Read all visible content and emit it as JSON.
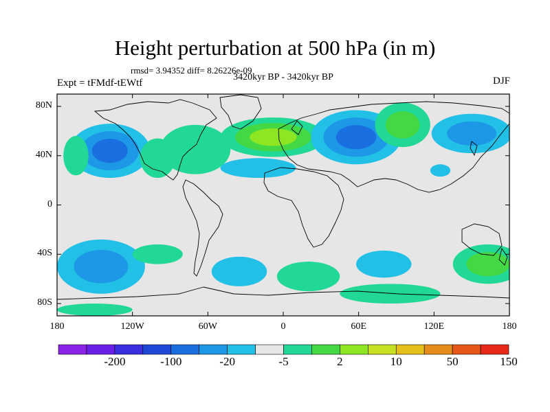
{
  "title": "Height perturbation at 500 hPa (in m)",
  "stats": "rmsd= 3.94352 diff= 8.26226e-09",
  "subtitle": "3420kyr BP - 3420kyr BP",
  "expt": "Expt = tFMdf-tEWtf",
  "season": "DJF",
  "axes": {
    "lat_ticks": [
      {
        "value": 80,
        "label": "80N"
      },
      {
        "value": 40,
        "label": "40N"
      },
      {
        "value": 0,
        "label": "0"
      },
      {
        "value": -40,
        "label": "40S"
      },
      {
        "value": -80,
        "label": "80S"
      }
    ],
    "lon_ticks": [
      {
        "value": -180,
        "label": "180"
      },
      {
        "value": -120,
        "label": "120W"
      },
      {
        "value": -60,
        "label": "60W"
      },
      {
        "value": 0,
        "label": "0"
      },
      {
        "value": 60,
        "label": "60E"
      },
      {
        "value": 120,
        "label": "120E"
      },
      {
        "value": 180,
        "label": "180"
      }
    ],
    "lon_range": [
      -180,
      180
    ],
    "lat_range": [
      -90,
      90
    ]
  },
  "colorbar": {
    "colors": [
      "#8b22e6",
      "#6a1ee8",
      "#3b2ee0",
      "#1f48d6",
      "#1a6fe0",
      "#1d98e6",
      "#22bfe6",
      "#e6e6e6",
      "#22d896",
      "#44d844",
      "#8ee622",
      "#c8e022",
      "#e6c01a",
      "#e68c1a",
      "#e6581a",
      "#e62a1a"
    ],
    "labels": [
      {
        "after_index": 1,
        "text": "-200"
      },
      {
        "after_index": 3,
        "text": "-100"
      },
      {
        "after_index": 5,
        "text": "-20"
      },
      {
        "after_index": 7,
        "text": "-5"
      },
      {
        "after_index": 9,
        "text": "2"
      },
      {
        "after_index": 11,
        "text": "10"
      },
      {
        "after_index": 13,
        "text": "50"
      },
      {
        "after_index": 15,
        "text": "150"
      }
    ]
  },
  "anomalies": [
    {
      "lon": -138,
      "lat": 44,
      "rx": 32,
      "ry": 22,
      "sign": -1,
      "level": 3
    },
    {
      "lon": -100,
      "lat": 38,
      "rx": 14,
      "ry": 16,
      "sign": 1,
      "level": 1
    },
    {
      "lon": -70,
      "lat": 45,
      "rx": 28,
      "ry": 20,
      "sign": 1,
      "level": 1
    },
    {
      "lon": -8,
      "lat": 55,
      "rx": 42,
      "ry": 16,
      "sign": 1,
      "level": 3
    },
    {
      "lon": -20,
      "lat": 30,
      "rx": 30,
      "ry": 8,
      "sign": -1,
      "level": 1
    },
    {
      "lon": 58,
      "lat": 55,
      "rx": 36,
      "ry": 22,
      "sign": -1,
      "level": 3
    },
    {
      "lon": 95,
      "lat": 65,
      "rx": 22,
      "ry": 18,
      "sign": 1,
      "level": 2
    },
    {
      "lon": 150,
      "lat": 58,
      "rx": 32,
      "ry": 16,
      "sign": -1,
      "level": 2
    },
    {
      "lon": -165,
      "lat": 40,
      "rx": 10,
      "ry": 16,
      "sign": 1,
      "level": 1
    },
    {
      "lon": 125,
      "lat": 28,
      "rx": 8,
      "ry": 5,
      "sign": -1,
      "level": 1
    },
    {
      "lon": -145,
      "lat": -50,
      "rx": 35,
      "ry": 22,
      "sign": -1,
      "level": 2
    },
    {
      "lon": -100,
      "lat": -40,
      "rx": 20,
      "ry": 8,
      "sign": 1,
      "level": 1
    },
    {
      "lon": -35,
      "lat": -54,
      "rx": 22,
      "ry": 12,
      "sign": -1,
      "level": 1
    },
    {
      "lon": 20,
      "lat": -58,
      "rx": 25,
      "ry": 12,
      "sign": 1,
      "level": 1
    },
    {
      "lon": 80,
      "lat": -48,
      "rx": 22,
      "ry": 11,
      "sign": -1,
      "level": 1
    },
    {
      "lon": 163,
      "lat": -48,
      "rx": 28,
      "ry": 16,
      "sign": 1,
      "level": 2
    },
    {
      "lon": 85,
      "lat": -72,
      "rx": 40,
      "ry": 8,
      "sign": 1,
      "level": 1
    },
    {
      "lon": -150,
      "lat": -85,
      "rx": 30,
      "ry": 5,
      "sign": 1,
      "level": 1
    }
  ]
}
